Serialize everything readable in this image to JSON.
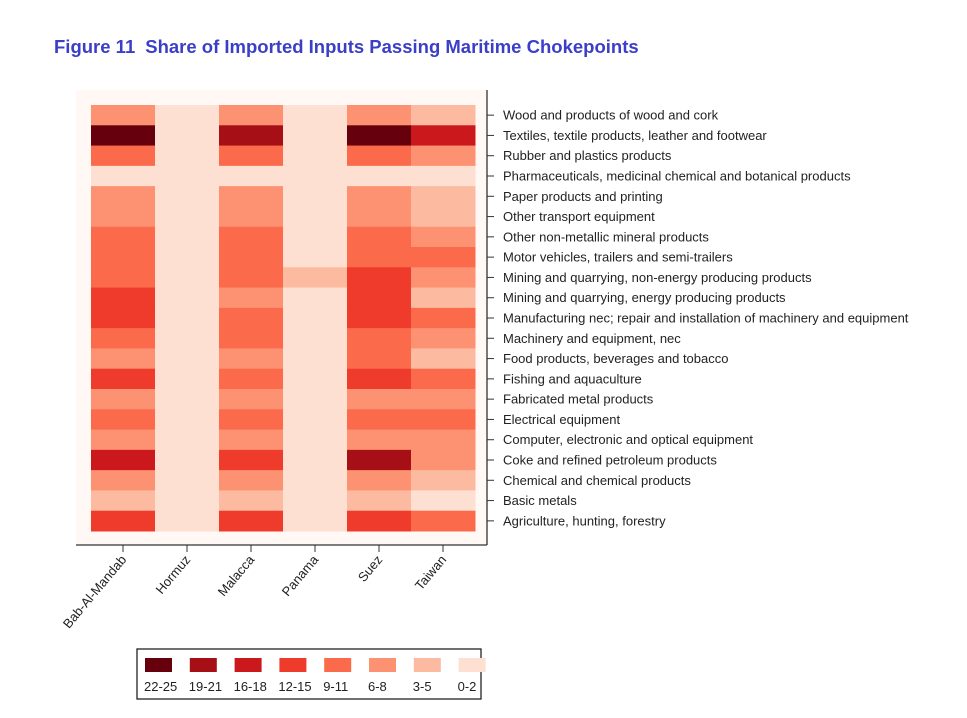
{
  "title": {
    "figure": "Figure 11",
    "text": "Share of Imported Inputs Passing Maritime Chokepoints"
  },
  "chart_data": {
    "type": "heatmap",
    "x_categories": [
      "Bab-Al-Mandab",
      "Hormuz",
      "Malacca",
      "Panama",
      "Suez",
      "Taiwan"
    ],
    "y_categories": [
      "Wood and products of wood and cork",
      "Textiles, textile products, leather and footwear",
      "Rubber and plastics products",
      "Pharmaceuticals, medicinal chemical and botanical products",
      "Paper products and printing",
      "Other transport equipment",
      "Other non-metallic mineral products",
      "Motor vehicles, trailers and semi-trailers",
      "Mining and quarrying, non-energy producing products",
      "Mining and quarrying, energy producing products",
      "Manufacturing nec; repair and installation of machinery and equipment",
      "Machinery and equipment, nec",
      "Food products, beverages and tobacco",
      "Fishing and aquaculture",
      "Fabricated metal products",
      "Electrical equipment",
      "Computer, electronic and optical equipment",
      "Coke and refined petroleum products",
      "Chemical and chemical products",
      "Basic metals",
      "Agriculture, hunting, forestry"
    ],
    "value_bins": [
      "0-2",
      "3-5",
      "6-8",
      "9-11",
      "12-15",
      "16-18",
      "19-21",
      "22-25"
    ],
    "values": [
      [
        "6-8",
        "0-2",
        "6-8",
        "0-2",
        "6-8",
        "3-5"
      ],
      [
        "22-25",
        "0-2",
        "19-21",
        "0-2",
        "22-25",
        "16-18"
      ],
      [
        "9-11",
        "0-2",
        "9-11",
        "0-2",
        "9-11",
        "6-8"
      ],
      [
        "0-2",
        "0-2",
        "0-2",
        "0-2",
        "0-2",
        "0-2"
      ],
      [
        "6-8",
        "0-2",
        "6-8",
        "0-2",
        "6-8",
        "3-5"
      ],
      [
        "6-8",
        "0-2",
        "6-8",
        "0-2",
        "6-8",
        "3-5"
      ],
      [
        "9-11",
        "0-2",
        "9-11",
        "0-2",
        "9-11",
        "6-8"
      ],
      [
        "9-11",
        "0-2",
        "9-11",
        "0-2",
        "9-11",
        "9-11"
      ],
      [
        "9-11",
        "0-2",
        "9-11",
        "3-5",
        "12-15",
        "6-8"
      ],
      [
        "12-15",
        "0-2",
        "6-8",
        "0-2",
        "12-15",
        "3-5"
      ],
      [
        "12-15",
        "0-2",
        "9-11",
        "0-2",
        "12-15",
        "9-11"
      ],
      [
        "9-11",
        "0-2",
        "9-11",
        "0-2",
        "9-11",
        "6-8"
      ],
      [
        "6-8",
        "0-2",
        "6-8",
        "0-2",
        "9-11",
        "3-5"
      ],
      [
        "12-15",
        "0-2",
        "9-11",
        "0-2",
        "12-15",
        "9-11"
      ],
      [
        "6-8",
        "0-2",
        "6-8",
        "0-2",
        "6-8",
        "6-8"
      ],
      [
        "9-11",
        "0-2",
        "9-11",
        "0-2",
        "9-11",
        "9-11"
      ],
      [
        "6-8",
        "0-2",
        "6-8",
        "0-2",
        "6-8",
        "6-8"
      ],
      [
        "16-18",
        "0-2",
        "12-15",
        "0-2",
        "19-21",
        "6-8"
      ],
      [
        "6-8",
        "0-2",
        "6-8",
        "0-2",
        "6-8",
        "3-5"
      ],
      [
        "3-5",
        "0-2",
        "3-5",
        "0-2",
        "3-5",
        "0-2"
      ],
      [
        "12-15",
        "0-2",
        "12-15",
        "0-2",
        "12-15",
        "9-11"
      ]
    ],
    "legend": {
      "placement": "bottom",
      "entries": [
        {
          "label": "22-25",
          "color": "#67000d"
        },
        {
          "label": "19-21",
          "color": "#a50f15"
        },
        {
          "label": "16-18",
          "color": "#cb181d"
        },
        {
          "label": "12-15",
          "color": "#ef3b2c"
        },
        {
          "label": "9-11",
          "color": "#fb6a4a"
        },
        {
          "label": "6-8",
          "color": "#fc9272"
        },
        {
          "label": "3-5",
          "color": "#fcbba1"
        },
        {
          "label": "0-2",
          "color": "#fee0d2"
        }
      ]
    },
    "grid": false
  }
}
